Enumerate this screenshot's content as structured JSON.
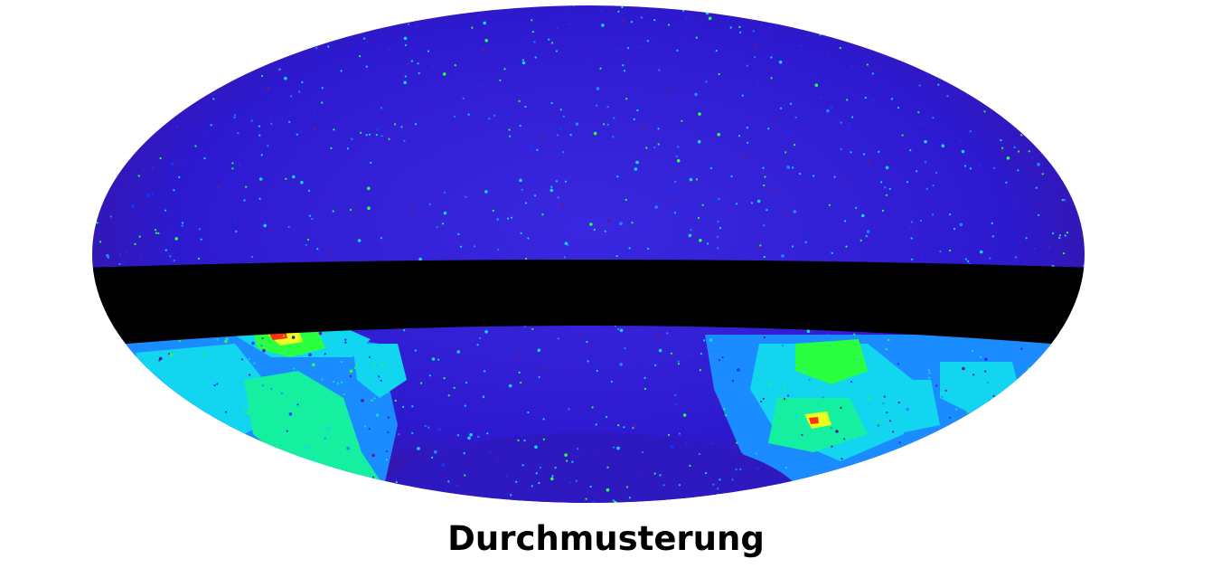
{
  "caption": "Durchmusterung",
  "colors": {
    "background": "#ffffff",
    "sky_base": "#2a18c8",
    "sky_dark": "#3a1290",
    "galactic_band": "#000000",
    "cyan": "#12d6f0",
    "sky_blue": "#1b8cff",
    "aqua_green": "#14f0a0",
    "green": "#2aff40",
    "yellow": "#e8ff20",
    "red": "#ff3010"
  }
}
